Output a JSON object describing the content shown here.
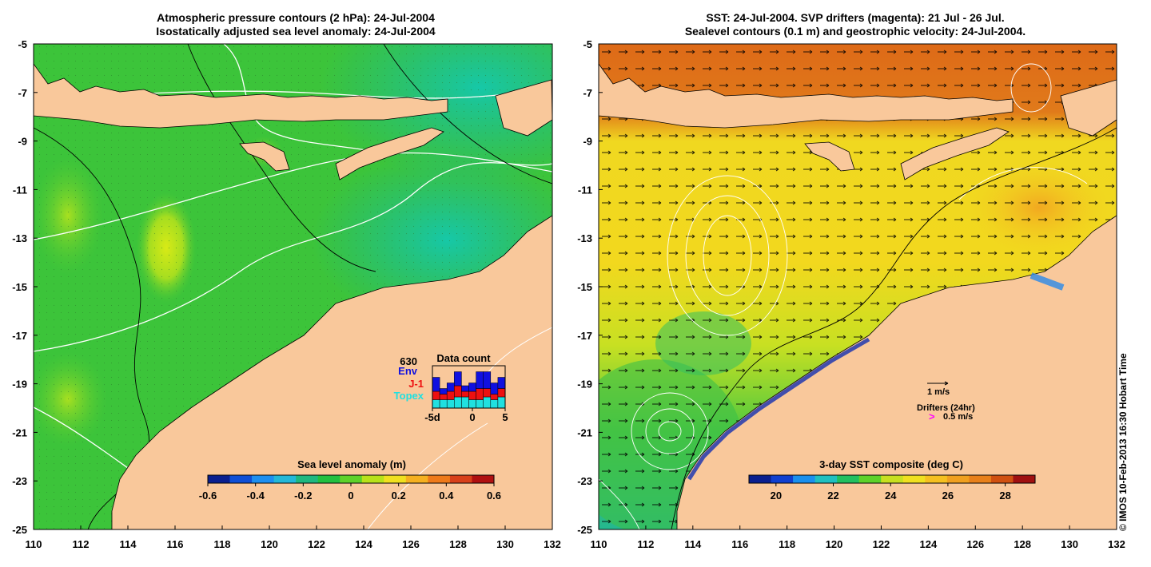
{
  "left_panel": {
    "title_line1": "Atmospheric pressure contours (2 hPa): 24-Jul-2004",
    "title_line2": "Isostatically adjusted sea level anomaly: 24-Jul-2004",
    "lon_ticks": [
      "110",
      "112",
      "114",
      "116",
      "118",
      "120",
      "122",
      "124",
      "126",
      "128",
      "130",
      "132"
    ],
    "lat_ticks": [
      "-5",
      "-7",
      "-9",
      "-11",
      "-13",
      "-15",
      "-17",
      "-19",
      "-21",
      "-23",
      "-25"
    ],
    "colorbar": {
      "title": "Sea level anomaly (m)",
      "ticks": [
        "-0.6",
        "-0.4",
        "-0.2",
        "0",
        "0.2",
        "0.4",
        "0.6"
      ],
      "colors": [
        "#0a1f8f",
        "#0f4fd6",
        "#1d8ff0",
        "#24b8d8",
        "#1fb880",
        "#22c040",
        "#5ed22a",
        "#b8e21a",
        "#f0e020",
        "#f5b020",
        "#ee7a1a",
        "#d8401a",
        "#b01010"
      ]
    },
    "data_count": {
      "title": "Data count",
      "count_label": "630",
      "legend": [
        {
          "label": "Env",
          "color": "#1010e0"
        },
        {
          "label": "J-1",
          "color": "#ee1010"
        },
        {
          "label": "Topex",
          "color": "#20e0e0"
        }
      ],
      "x_ticks": [
        "-5d",
        "0",
        "5"
      ],
      "bars": [
        {
          "topex": 3,
          "j1": 3,
          "env": 5
        },
        {
          "topex": 3,
          "j1": 2,
          "env": 2
        },
        {
          "topex": 3,
          "j1": 3,
          "env": 3
        },
        {
          "topex": 4,
          "j1": 4,
          "env": 5
        },
        {
          "topex": 4,
          "j1": 2,
          "env": 2
        },
        {
          "topex": 3,
          "j1": 3,
          "env": 3
        },
        {
          "topex": 3,
          "j1": 4,
          "env": 6
        },
        {
          "topex": 4,
          "j1": 3,
          "env": 6
        },
        {
          "topex": 3,
          "j1": 2,
          "env": 4
        },
        {
          "topex": 4,
          "j1": 3,
          "env": 4
        }
      ]
    }
  },
  "right_panel": {
    "title_line1": "SST: 24-Jul-2004. SVP drifters (magenta): 21 Jul - 26 Jul.",
    "title_line2": "Sealevel contours (0.1 m) and geostrophic velocity: 24-Jul-2004.",
    "lon_ticks": [
      "110",
      "112",
      "114",
      "116",
      "118",
      "120",
      "122",
      "124",
      "126",
      "128",
      "130",
      "132"
    ],
    "lat_ticks": [
      "-5",
      "-7",
      "-9",
      "-11",
      "-13",
      "-15",
      "-17",
      "-19",
      "-21",
      "-23",
      "-25"
    ],
    "colorbar": {
      "title": "3-day SST composite (deg C)",
      "ticks": [
        "20",
        "22",
        "24",
        "26",
        "28"
      ],
      "colors": [
        "#0a1f8f",
        "#1040d0",
        "#1a90ee",
        "#20c0c0",
        "#22c060",
        "#5ed22a",
        "#c8e020",
        "#f0e020",
        "#f5c020",
        "#f0a020",
        "#e8801a",
        "#d05010",
        "#a01010"
      ]
    },
    "velocity_legend": "1 m/s",
    "drifter_legend_title": "Drifters (24hr)",
    "drifter_legend_value": "0.5 m/s",
    "drifter_symbol": ">"
  },
  "copyright": "© IMOS 10-Feb-2013 16:30 Hobart Time",
  "colors": {
    "land": "#f9c89b",
    "coast": "#000000",
    "contour": "#ffffff",
    "drifter": "#ff00ff"
  }
}
